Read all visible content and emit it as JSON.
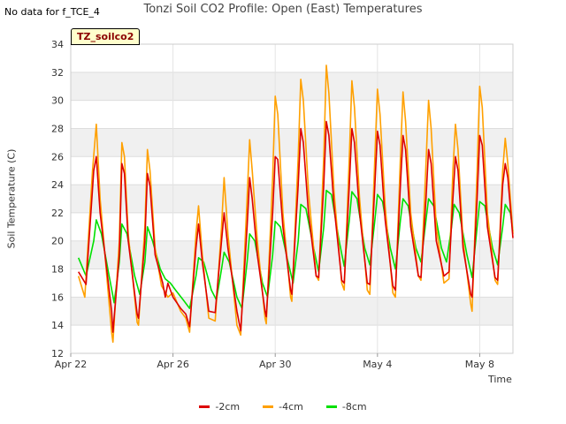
{
  "no_data_note": "No data for f_TCE_4",
  "badge": "TZ_soilco2",
  "chart_data": {
    "type": "line",
    "title": "Tonzi Soil CO2 Profile: Open (East) Temperatures",
    "xlabel": "Time",
    "ylabel": "Soil Temperature (C)",
    "ylim": [
      12,
      34
    ],
    "yticks": [
      12,
      14,
      16,
      18,
      20,
      22,
      24,
      26,
      28,
      30,
      32,
      34
    ],
    "xlim": [
      0,
      17.3
    ],
    "xtick_labels": [
      {
        "x": 0,
        "label": "Apr 22"
      },
      {
        "x": 4,
        "label": "Apr 26"
      },
      {
        "x": 8,
        "label": "Apr 30"
      },
      {
        "x": 12,
        "label": "May 4"
      },
      {
        "x": 16,
        "label": "May 8"
      }
    ],
    "grid": "horizontal bands",
    "legend_position": "bottom",
    "series": [
      {
        "name": "-2cm",
        "color": "#dd0000",
        "points": [
          [
            0.3,
            17.8
          ],
          [
            0.6,
            16.9
          ],
          [
            0.9,
            25.0
          ],
          [
            1.0,
            26.0
          ],
          [
            1.15,
            22.0
          ],
          [
            1.6,
            15.0
          ],
          [
            1.65,
            13.5
          ],
          [
            1.9,
            19.0
          ],
          [
            2.0,
            25.5
          ],
          [
            2.1,
            24.8
          ],
          [
            2.25,
            20.0
          ],
          [
            2.6,
            14.8
          ],
          [
            2.65,
            14.5
          ],
          [
            2.9,
            20.0
          ],
          [
            3.0,
            24.8
          ],
          [
            3.1,
            23.9
          ],
          [
            3.3,
            19.0
          ],
          [
            3.6,
            17.0
          ],
          [
            3.7,
            16.0
          ],
          [
            3.8,
            17.0
          ],
          [
            4.0,
            16.0
          ],
          [
            4.3,
            15.2
          ],
          [
            4.5,
            14.8
          ],
          [
            4.65,
            13.9
          ],
          [
            4.9,
            19.5
          ],
          [
            5.0,
            21.2
          ],
          [
            5.15,
            18.5
          ],
          [
            5.4,
            15.0
          ],
          [
            5.65,
            14.9
          ],
          [
            5.9,
            20.0
          ],
          [
            6.0,
            22.0
          ],
          [
            6.15,
            19.5
          ],
          [
            6.5,
            15.0
          ],
          [
            6.65,
            13.6
          ],
          [
            6.9,
            21.0
          ],
          [
            7.0,
            24.5
          ],
          [
            7.1,
            23.0
          ],
          [
            7.3,
            19.0
          ],
          [
            7.6,
            15.0
          ],
          [
            7.65,
            14.6
          ],
          [
            7.9,
            22.0
          ],
          [
            8.0,
            26.0
          ],
          [
            8.1,
            25.8
          ],
          [
            8.3,
            21.0
          ],
          [
            8.6,
            16.5
          ],
          [
            8.65,
            16.2
          ],
          [
            8.9,
            24.0
          ],
          [
            9.0,
            28.0
          ],
          [
            9.1,
            27.0
          ],
          [
            9.3,
            22.0
          ],
          [
            9.6,
            17.5
          ],
          [
            9.7,
            17.4
          ],
          [
            9.9,
            24.0
          ],
          [
            10.0,
            28.5
          ],
          [
            10.1,
            27.5
          ],
          [
            10.3,
            22.5
          ],
          [
            10.6,
            17.2
          ],
          [
            10.7,
            17.0
          ],
          [
            10.9,
            24.0
          ],
          [
            11.0,
            28.0
          ],
          [
            11.1,
            27.0
          ],
          [
            11.3,
            22.0
          ],
          [
            11.6,
            17.0
          ],
          [
            11.7,
            16.9
          ],
          [
            11.9,
            24.0
          ],
          [
            12.0,
            27.8
          ],
          [
            12.1,
            26.8
          ],
          [
            12.3,
            21.5
          ],
          [
            12.6,
            16.8
          ],
          [
            12.7,
            16.5
          ],
          [
            12.9,
            24.0
          ],
          [
            13.0,
            27.5
          ],
          [
            13.1,
            26.5
          ],
          [
            13.3,
            21.0
          ],
          [
            13.6,
            17.5
          ],
          [
            13.7,
            17.4
          ],
          [
            13.9,
            23.0
          ],
          [
            14.0,
            26.5
          ],
          [
            14.1,
            25.5
          ],
          [
            14.3,
            20.0
          ],
          [
            14.6,
            17.5
          ],
          [
            14.8,
            17.8
          ],
          [
            14.95,
            23.0
          ],
          [
            15.05,
            26.0
          ],
          [
            15.15,
            25.0
          ],
          [
            15.35,
            19.5
          ],
          [
            15.65,
            16.2
          ],
          [
            15.7,
            16.0
          ],
          [
            15.9,
            23.0
          ],
          [
            16.0,
            27.5
          ],
          [
            16.1,
            26.8
          ],
          [
            16.3,
            21.0
          ],
          [
            16.6,
            17.4
          ],
          [
            16.7,
            17.2
          ],
          [
            16.9,
            24.0
          ],
          [
            17.0,
            25.5
          ],
          [
            17.1,
            24.5
          ],
          [
            17.3,
            20.2
          ]
        ]
      },
      {
        "name": "-4cm",
        "color": "#ffa000",
        "points": [
          [
            0.3,
            17.5
          ],
          [
            0.55,
            16.0
          ],
          [
            0.85,
            25.0
          ],
          [
            1.0,
            28.3
          ],
          [
            1.15,
            23.0
          ],
          [
            1.6,
            13.5
          ],
          [
            1.65,
            12.8
          ],
          [
            1.9,
            20.0
          ],
          [
            2.0,
            27.0
          ],
          [
            2.1,
            26.0
          ],
          [
            2.25,
            20.5
          ],
          [
            2.6,
            14.2
          ],
          [
            2.65,
            14.0
          ],
          [
            2.9,
            21.0
          ],
          [
            3.0,
            26.5
          ],
          [
            3.1,
            25.0
          ],
          [
            3.3,
            19.5
          ],
          [
            3.55,
            16.8
          ],
          [
            3.65,
            16.5
          ],
          [
            3.8,
            16.0
          ],
          [
            4.0,
            16.3
          ],
          [
            4.3,
            15.0
          ],
          [
            4.5,
            14.5
          ],
          [
            4.65,
            13.5
          ],
          [
            4.9,
            20.5
          ],
          [
            5.0,
            22.5
          ],
          [
            5.15,
            19.0
          ],
          [
            5.4,
            14.5
          ],
          [
            5.65,
            14.3
          ],
          [
            5.9,
            21.0
          ],
          [
            6.0,
            24.5
          ],
          [
            6.15,
            20.5
          ],
          [
            6.5,
            14.0
          ],
          [
            6.65,
            13.3
          ],
          [
            6.9,
            23.0
          ],
          [
            7.0,
            27.2
          ],
          [
            7.1,
            25.0
          ],
          [
            7.3,
            20.0
          ],
          [
            7.6,
            14.5
          ],
          [
            7.65,
            14.1
          ],
          [
            7.9,
            24.5
          ],
          [
            8.0,
            30.3
          ],
          [
            8.1,
            29.0
          ],
          [
            8.3,
            22.0
          ],
          [
            8.6,
            16.0
          ],
          [
            8.65,
            15.7
          ],
          [
            8.9,
            26.0
          ],
          [
            9.0,
            31.5
          ],
          [
            9.1,
            30.0
          ],
          [
            9.3,
            23.5
          ],
          [
            9.6,
            17.5
          ],
          [
            9.7,
            17.2
          ],
          [
            9.9,
            26.0
          ],
          [
            10.0,
            32.5
          ],
          [
            10.1,
            30.5
          ],
          [
            10.3,
            23.5
          ],
          [
            10.6,
            17.0
          ],
          [
            10.7,
            16.5
          ],
          [
            10.9,
            26.0
          ],
          [
            11.0,
            31.4
          ],
          [
            11.1,
            29.5
          ],
          [
            11.3,
            23.0
          ],
          [
            11.6,
            16.5
          ],
          [
            11.7,
            16.2
          ],
          [
            11.9,
            26.0
          ],
          [
            12.0,
            30.8
          ],
          [
            12.1,
            29.0
          ],
          [
            12.3,
            22.5
          ],
          [
            12.6,
            16.3
          ],
          [
            12.7,
            16.0
          ],
          [
            12.9,
            26.0
          ],
          [
            13.0,
            30.6
          ],
          [
            13.1,
            28.5
          ],
          [
            13.3,
            22.0
          ],
          [
            13.6,
            17.5
          ],
          [
            13.7,
            17.2
          ],
          [
            13.9,
            25.5
          ],
          [
            14.0,
            30.0
          ],
          [
            14.1,
            28.0
          ],
          [
            14.3,
            21.0
          ],
          [
            14.6,
            17.0
          ],
          [
            14.8,
            17.3
          ],
          [
            14.95,
            25.0
          ],
          [
            15.05,
            28.3
          ],
          [
            15.15,
            26.5
          ],
          [
            15.35,
            20.0
          ],
          [
            15.65,
            15.5
          ],
          [
            15.7,
            15.0
          ],
          [
            15.9,
            25.0
          ],
          [
            16.0,
            31.0
          ],
          [
            16.1,
            29.5
          ],
          [
            16.3,
            22.0
          ],
          [
            16.6,
            17.2
          ],
          [
            16.7,
            16.9
          ],
          [
            16.9,
            25.0
          ],
          [
            17.0,
            27.3
          ],
          [
            17.1,
            25.5
          ],
          [
            17.3,
            20.5
          ]
        ]
      },
      {
        "name": "-8cm",
        "color": "#00e000",
        "points": [
          [
            0.3,
            18.8
          ],
          [
            0.6,
            17.5
          ],
          [
            0.9,
            20.0
          ],
          [
            1.0,
            21.5
          ],
          [
            1.2,
            20.5
          ],
          [
            1.5,
            17.5
          ],
          [
            1.7,
            15.6
          ],
          [
            1.9,
            18.5
          ],
          [
            2.0,
            21.2
          ],
          [
            2.2,
            20.5
          ],
          [
            2.5,
            17.5
          ],
          [
            2.7,
            16.2
          ],
          [
            2.9,
            18.5
          ],
          [
            3.0,
            21.0
          ],
          [
            3.2,
            20.0
          ],
          [
            3.5,
            18.0
          ],
          [
            3.7,
            17.3
          ],
          [
            3.9,
            17.0
          ],
          [
            4.1,
            16.5
          ],
          [
            4.4,
            15.8
          ],
          [
            4.65,
            15.2
          ],
          [
            4.9,
            17.5
          ],
          [
            5.0,
            18.8
          ],
          [
            5.2,
            18.5
          ],
          [
            5.5,
            16.5
          ],
          [
            5.7,
            15.8
          ],
          [
            5.9,
            18.0
          ],
          [
            6.0,
            19.2
          ],
          [
            6.2,
            18.5
          ],
          [
            6.5,
            16.0
          ],
          [
            6.7,
            15.2
          ],
          [
            6.9,
            18.5
          ],
          [
            7.0,
            20.5
          ],
          [
            7.2,
            20.0
          ],
          [
            7.5,
            17.0
          ],
          [
            7.7,
            16.0
          ],
          [
            7.9,
            19.0
          ],
          [
            8.0,
            21.4
          ],
          [
            8.2,
            21.0
          ],
          [
            8.5,
            18.5
          ],
          [
            8.7,
            17.0
          ],
          [
            8.9,
            20.0
          ],
          [
            9.0,
            22.6
          ],
          [
            9.2,
            22.3
          ],
          [
            9.5,
            19.5
          ],
          [
            9.7,
            17.8
          ],
          [
            9.9,
            21.0
          ],
          [
            10.0,
            23.6
          ],
          [
            10.2,
            23.3
          ],
          [
            10.5,
            20.0
          ],
          [
            10.7,
            18.2
          ],
          [
            10.9,
            21.5
          ],
          [
            11.0,
            23.5
          ],
          [
            11.2,
            23.0
          ],
          [
            11.5,
            19.5
          ],
          [
            11.7,
            18.3
          ],
          [
            11.9,
            21.5
          ],
          [
            12.0,
            23.3
          ],
          [
            12.2,
            22.8
          ],
          [
            12.5,
            19.5
          ],
          [
            12.7,
            18.0
          ],
          [
            12.9,
            21.5
          ],
          [
            13.0,
            23.0
          ],
          [
            13.2,
            22.5
          ],
          [
            13.5,
            19.5
          ],
          [
            13.7,
            18.5
          ],
          [
            13.9,
            21.5
          ],
          [
            14.0,
            23.0
          ],
          [
            14.2,
            22.5
          ],
          [
            14.5,
            19.5
          ],
          [
            14.7,
            18.5
          ],
          [
            14.9,
            21.0
          ],
          [
            15.0,
            22.6
          ],
          [
            15.2,
            22.0
          ],
          [
            15.5,
            19.0
          ],
          [
            15.7,
            17.4
          ],
          [
            15.9,
            21.0
          ],
          [
            16.0,
            22.8
          ],
          [
            16.2,
            22.5
          ],
          [
            16.5,
            19.5
          ],
          [
            16.7,
            18.3
          ],
          [
            16.9,
            21.0
          ],
          [
            17.0,
            22.6
          ],
          [
            17.2,
            22.0
          ],
          [
            17.3,
            20.7
          ]
        ]
      }
    ]
  }
}
